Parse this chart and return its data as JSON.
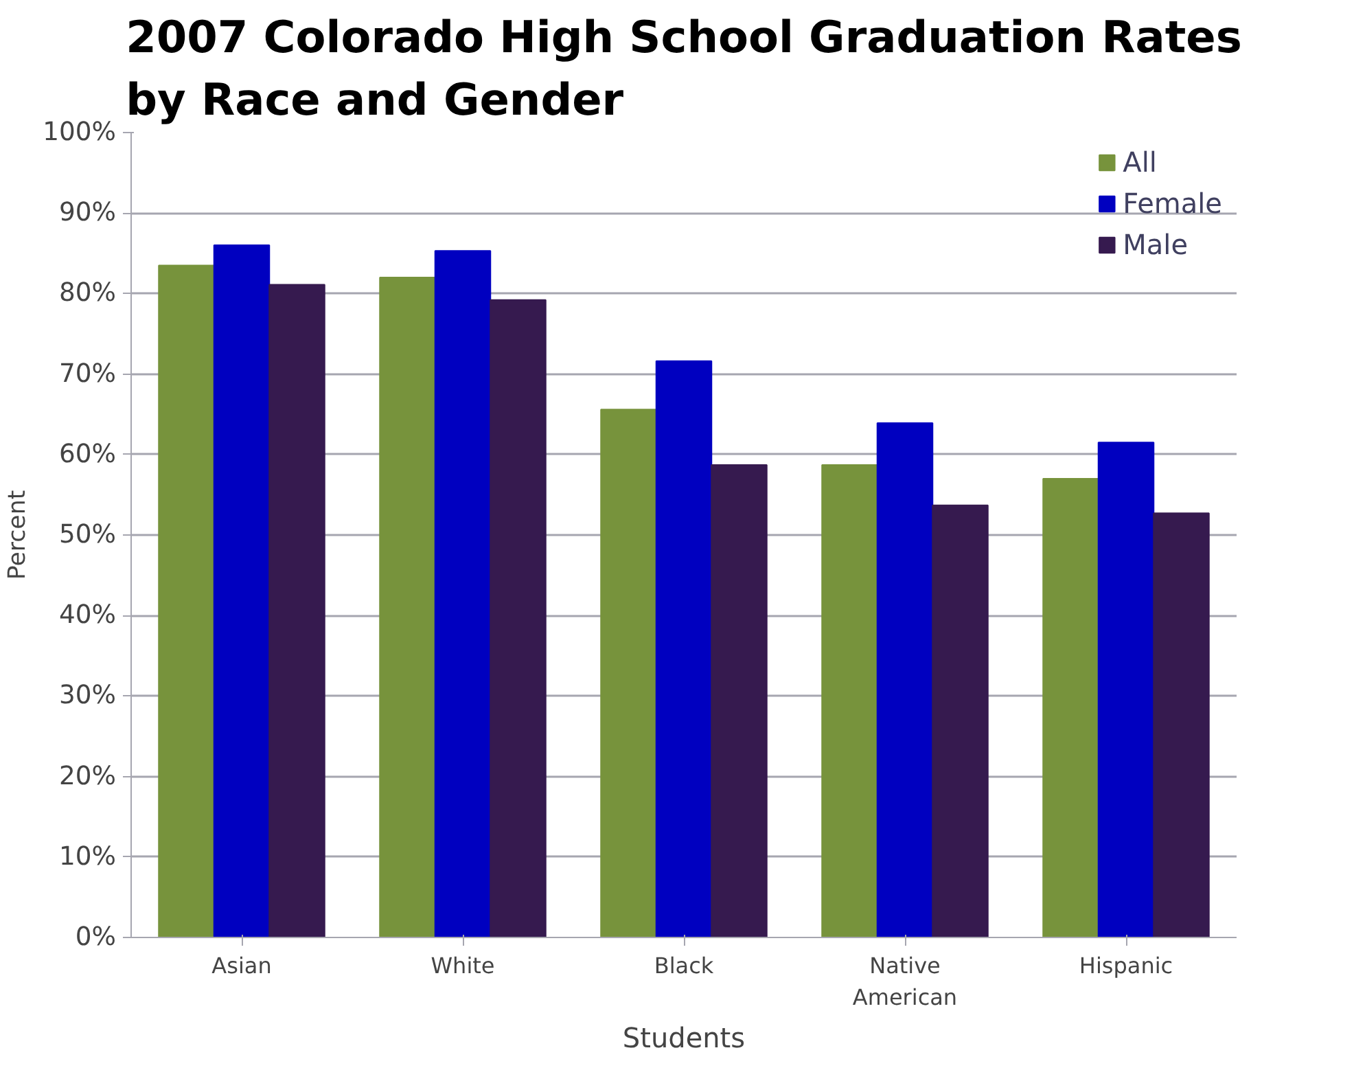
{
  "chart_data": {
    "type": "bar",
    "title": "2007 Colorado High School Graduation Rates\nby Race and Gender",
    "xlabel": "Students",
    "ylabel": "Percent",
    "categories": [
      "Asian",
      "White",
      "Black",
      "Native American",
      "Hispanic"
    ],
    "series": [
      {
        "name": "All",
        "color": "#77933c",
        "values": [
          83.5,
          82.0,
          65.6,
          58.7,
          57.0
        ]
      },
      {
        "name": "Female",
        "color": "#0000c0",
        "values": [
          86.0,
          85.3,
          71.6,
          63.9,
          61.5
        ]
      },
      {
        "name": "Male",
        "color": "#361a4f",
        "values": [
          81.1,
          79.2,
          58.7,
          53.7,
          52.7
        ]
      }
    ],
    "ylim": [
      0,
      100
    ],
    "yticks": [
      {
        "value": 0,
        "label": "0%"
      },
      {
        "value": 10,
        "label": "10%"
      },
      {
        "value": 20,
        "label": "20%"
      },
      {
        "value": 30,
        "label": "30%"
      },
      {
        "value": 40,
        "label": "40%"
      },
      {
        "value": 50,
        "label": "50%"
      },
      {
        "value": 60,
        "label": "60%"
      },
      {
        "value": 70,
        "label": "70%"
      },
      {
        "value": 80,
        "label": "80%"
      },
      {
        "value": 90,
        "label": "90%"
      },
      {
        "value": 100,
        "label": "100%"
      }
    ],
    "grid": "y",
    "legend": "top right"
  }
}
